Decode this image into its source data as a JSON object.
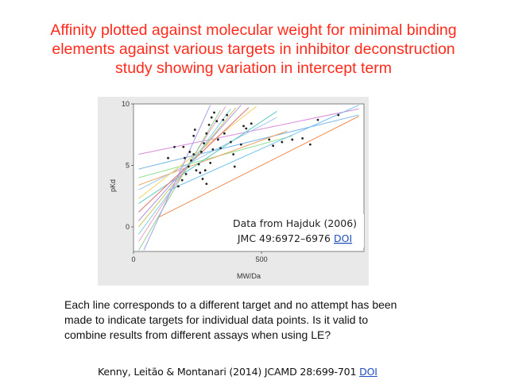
{
  "slide": {
    "title_lines": [
      "Affinity plotted against molecular weight for minimal binding",
      "elements against various targets in inhibitor deconstruction",
      "study showing variation in intercept term"
    ],
    "caption_lines": [
      "Each line corresponds to a different target and no attempt has been",
      "made to indicate targets for individual data points.  Is it valid to",
      "combine results from different assays when using LE?"
    ],
    "citation": {
      "text": "Kenny, Leitão & Montanari (2014) JCAMD 28:699-701 ",
      "link": "DOI"
    },
    "annotation": {
      "line1": "Data from Hajduk (2006)",
      "line2_text": "JMC 49:6972–6976 ",
      "line2_link": "DOI"
    },
    "colors": {
      "title": "#ff2a1a",
      "link": "#1f4fbf"
    }
  },
  "chart_data": {
    "type": "scatter",
    "xlabel": "MW/Da",
    "ylabel": "pKd",
    "xlim": [
      0,
      900
    ],
    "ylim": [
      -2,
      10
    ],
    "xticks": [
      "0",
      "500"
    ],
    "xtick_values": [
      0,
      500
    ],
    "yticks": [
      "0",
      "5",
      "10"
    ],
    "ytick_values": [
      0,
      5,
      10
    ],
    "grid": false,
    "fit_lines": [
      {
        "x": [
          20,
          880
        ],
        "y": [
          5.9,
          9.6
        ],
        "color": "#d88ad8"
      },
      {
        "x": [
          20,
          880
        ],
        "y": [
          4.7,
          9.1
        ],
        "color": "#7ab8e8"
      },
      {
        "x": [
          20,
          620
        ],
        "y": [
          4.0,
          7.4
        ],
        "color": "#8fe08f"
      },
      {
        "x": [
          20,
          600
        ],
        "y": [
          3.4,
          7.8
        ],
        "color": "#f0a060"
      },
      {
        "x": [
          20,
          560
        ],
        "y": [
          3.0,
          8.9
        ],
        "color": "#a0c8f0"
      },
      {
        "x": [
          20,
          480
        ],
        "y": [
          2.3,
          9.8
        ],
        "color": "#f5d060"
      },
      {
        "x": [
          20,
          560
        ],
        "y": [
          1.9,
          9.4
        ],
        "color": "#60c8c0"
      },
      {
        "x": [
          20,
          450
        ],
        "y": [
          1.2,
          9.7
        ],
        "color": "#e07070"
      },
      {
        "x": [
          20,
          420
        ],
        "y": [
          0.5,
          9.9
        ],
        "color": "#b090e0"
      },
      {
        "x": [
          20,
          400
        ],
        "y": [
          0.0,
          9.7
        ],
        "color": "#c8c860"
      },
      {
        "x": [
          20,
          380
        ],
        "y": [
          -0.6,
          9.6
        ],
        "color": "#80d0e8"
      },
      {
        "x": [
          20,
          360
        ],
        "y": [
          -1.2,
          9.8
        ],
        "color": "#e8a0c0"
      },
      {
        "x": [
          20,
          340
        ],
        "y": [
          -1.9,
          9.5
        ],
        "color": "#90d090"
      },
      {
        "x": [
          40,
          300
        ],
        "y": [
          -1.9,
          9.9
        ],
        "color": "#a0a0e8"
      },
      {
        "x": [
          100,
          880
        ],
        "y": [
          0.8,
          9.0
        ],
        "color": "#ee9050"
      },
      {
        "x": [
          140,
          880
        ],
        "y": [
          3.0,
          9.9
        ],
        "color": "#70c0f0"
      }
    ],
    "points": [
      {
        "x": 135,
        "y": 5.6
      },
      {
        "x": 160,
        "y": 6.5
      },
      {
        "x": 195,
        "y": 6.5
      },
      {
        "x": 235,
        "y": 7.4
      },
      {
        "x": 240,
        "y": 7.9
      },
      {
        "x": 175,
        "y": 3.3
      },
      {
        "x": 190,
        "y": 3.8
      },
      {
        "x": 205,
        "y": 4.3
      },
      {
        "x": 215,
        "y": 4.9
      },
      {
        "x": 225,
        "y": 5.4
      },
      {
        "x": 235,
        "y": 5.9
      },
      {
        "x": 245,
        "y": 4.6
      },
      {
        "x": 255,
        "y": 5.1
      },
      {
        "x": 265,
        "y": 6.1
      },
      {
        "x": 275,
        "y": 6.8
      },
      {
        "x": 285,
        "y": 7.6
      },
      {
        "x": 295,
        "y": 8.3
      },
      {
        "x": 305,
        "y": 8.9
      },
      {
        "x": 315,
        "y": 9.3
      },
      {
        "x": 325,
        "y": 8.6
      },
      {
        "x": 330,
        "y": 7.1
      },
      {
        "x": 340,
        "y": 6.4
      },
      {
        "x": 350,
        "y": 8.7
      },
      {
        "x": 355,
        "y": 7.6
      },
      {
        "x": 365,
        "y": 9.1
      },
      {
        "x": 260,
        "y": 4.4
      },
      {
        "x": 270,
        "y": 3.9
      },
      {
        "x": 280,
        "y": 4.6
      },
      {
        "x": 285,
        "y": 3.5
      },
      {
        "x": 380,
        "y": 6.9
      },
      {
        "x": 390,
        "y": 5.9
      },
      {
        "x": 420,
        "y": 6.7
      },
      {
        "x": 430,
        "y": 8.2
      },
      {
        "x": 460,
        "y": 8.4
      },
      {
        "x": 530,
        "y": 7.1
      },
      {
        "x": 545,
        "y": 6.6
      },
      {
        "x": 580,
        "y": 6.9
      },
      {
        "x": 620,
        "y": 7.1
      },
      {
        "x": 660,
        "y": 7.2
      },
      {
        "x": 690,
        "y": 6.7
      },
      {
        "x": 720,
        "y": 8.7
      },
      {
        "x": 800,
        "y": 9.1
      },
      {
        "x": 395,
        "y": 4.9
      },
      {
        "x": 310,
        "y": 6.3
      },
      {
        "x": 300,
        "y": 5.2
      },
      {
        "x": 220,
        "y": 6.1
      },
      {
        "x": 200,
        "y": 5.6
      },
      {
        "x": 440,
        "y": 8.0
      }
    ]
  }
}
